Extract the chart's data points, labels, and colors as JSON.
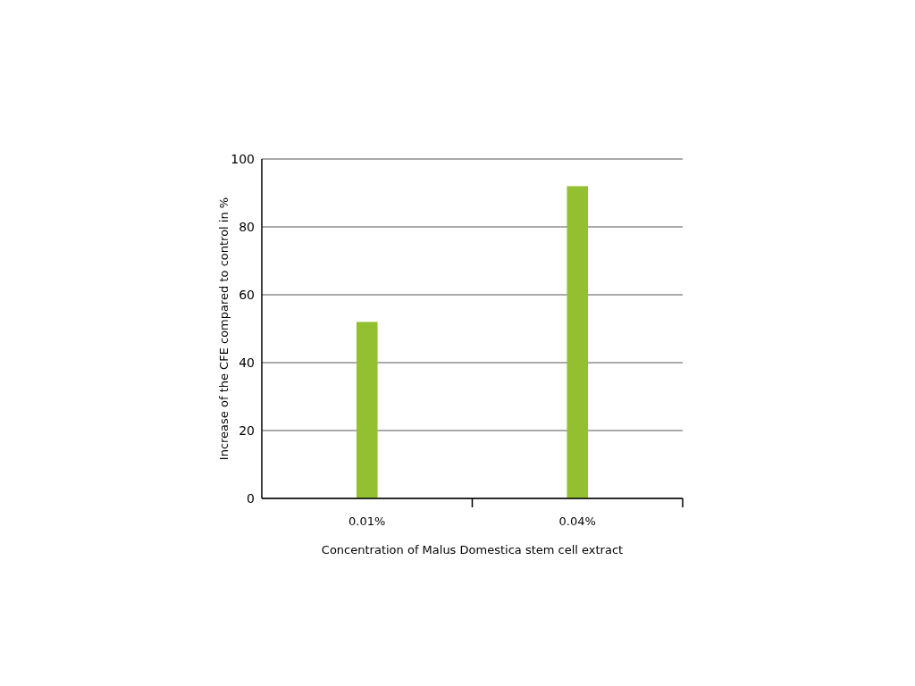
{
  "chart_data": {
    "type": "bar",
    "xlabel": "Concentration of Malus Domestica stem cell extract",
    "ylabel": "Increase of the CFE compared to control in %",
    "categories": [
      "0.01%",
      "0.04%"
    ],
    "values": [
      52,
      92
    ],
    "color": "#92c031",
    "ylim": [
      0,
      100
    ],
    "yticks": [
      0,
      20,
      40,
      60,
      80,
      100
    ],
    "grid": "y"
  }
}
